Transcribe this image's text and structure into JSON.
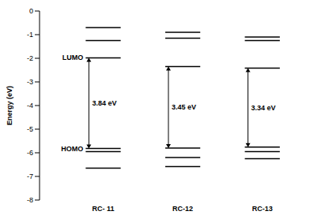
{
  "chart_data": {
    "type": "energy_levels",
    "y_label": "Energy (eV)",
    "ylim": [
      -8,
      0
    ],
    "yticks": [
      0,
      -1,
      -2,
      -3,
      -4,
      -5,
      -6,
      -7,
      -8
    ],
    "categories": [
      "RC- 11",
      "RC-12",
      "RC-13"
    ],
    "annotations": [
      "LUMO",
      "HOMO"
    ],
    "series": [
      {
        "name": "RC- 11",
        "color": "#000000",
        "unoccupied": [
          -0.7,
          -1.25
        ],
        "lumo": -1.98,
        "homo": -5.82,
        "occupied": [
          -5.95,
          -6.65
        ],
        "gap": 3.84,
        "gap_label": "3.84 eV"
      },
      {
        "name": "RC-12",
        "color": "#000000",
        "unoccupied": [
          -0.9,
          -1.15
        ],
        "lumo": -2.35,
        "homo": -5.8,
        "occupied": [
          -6.2,
          -6.58
        ],
        "gap": 3.45,
        "gap_label": "3.45 eV"
      },
      {
        "name": "RC-13",
        "color": "#000000",
        "unoccupied": [
          -1.1,
          -1.25
        ],
        "lumo": -2.42,
        "homo": -5.76,
        "occupied": [
          -5.95,
          -6.25
        ],
        "gap": 3.34,
        "gap_label": "3.34 eV"
      }
    ]
  }
}
